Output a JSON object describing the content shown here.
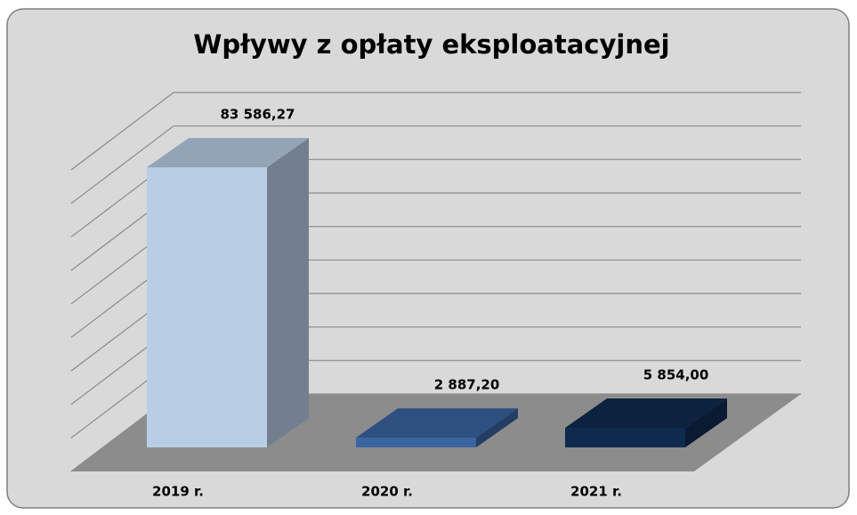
{
  "chart_data": {
    "type": "bar3d",
    "title": "Wpływy z opłaty eksploatacyjnej",
    "categories": [
      "2019 r.",
      "2020 r.",
      "2021 r."
    ],
    "values": [
      83586.27,
      2887.2,
      5854.0
    ],
    "value_labels": [
      "83 586,27",
      "2 887,20",
      "5 854,00"
    ],
    "colors": [
      "#b9cde5",
      "#3a64a0",
      "#0f2a4f"
    ],
    "ylim": [
      0,
      90000
    ],
    "yticks": [
      0,
      10000,
      20000,
      30000,
      40000,
      50000,
      60000,
      70000,
      80000,
      90000
    ],
    "grid": true
  }
}
